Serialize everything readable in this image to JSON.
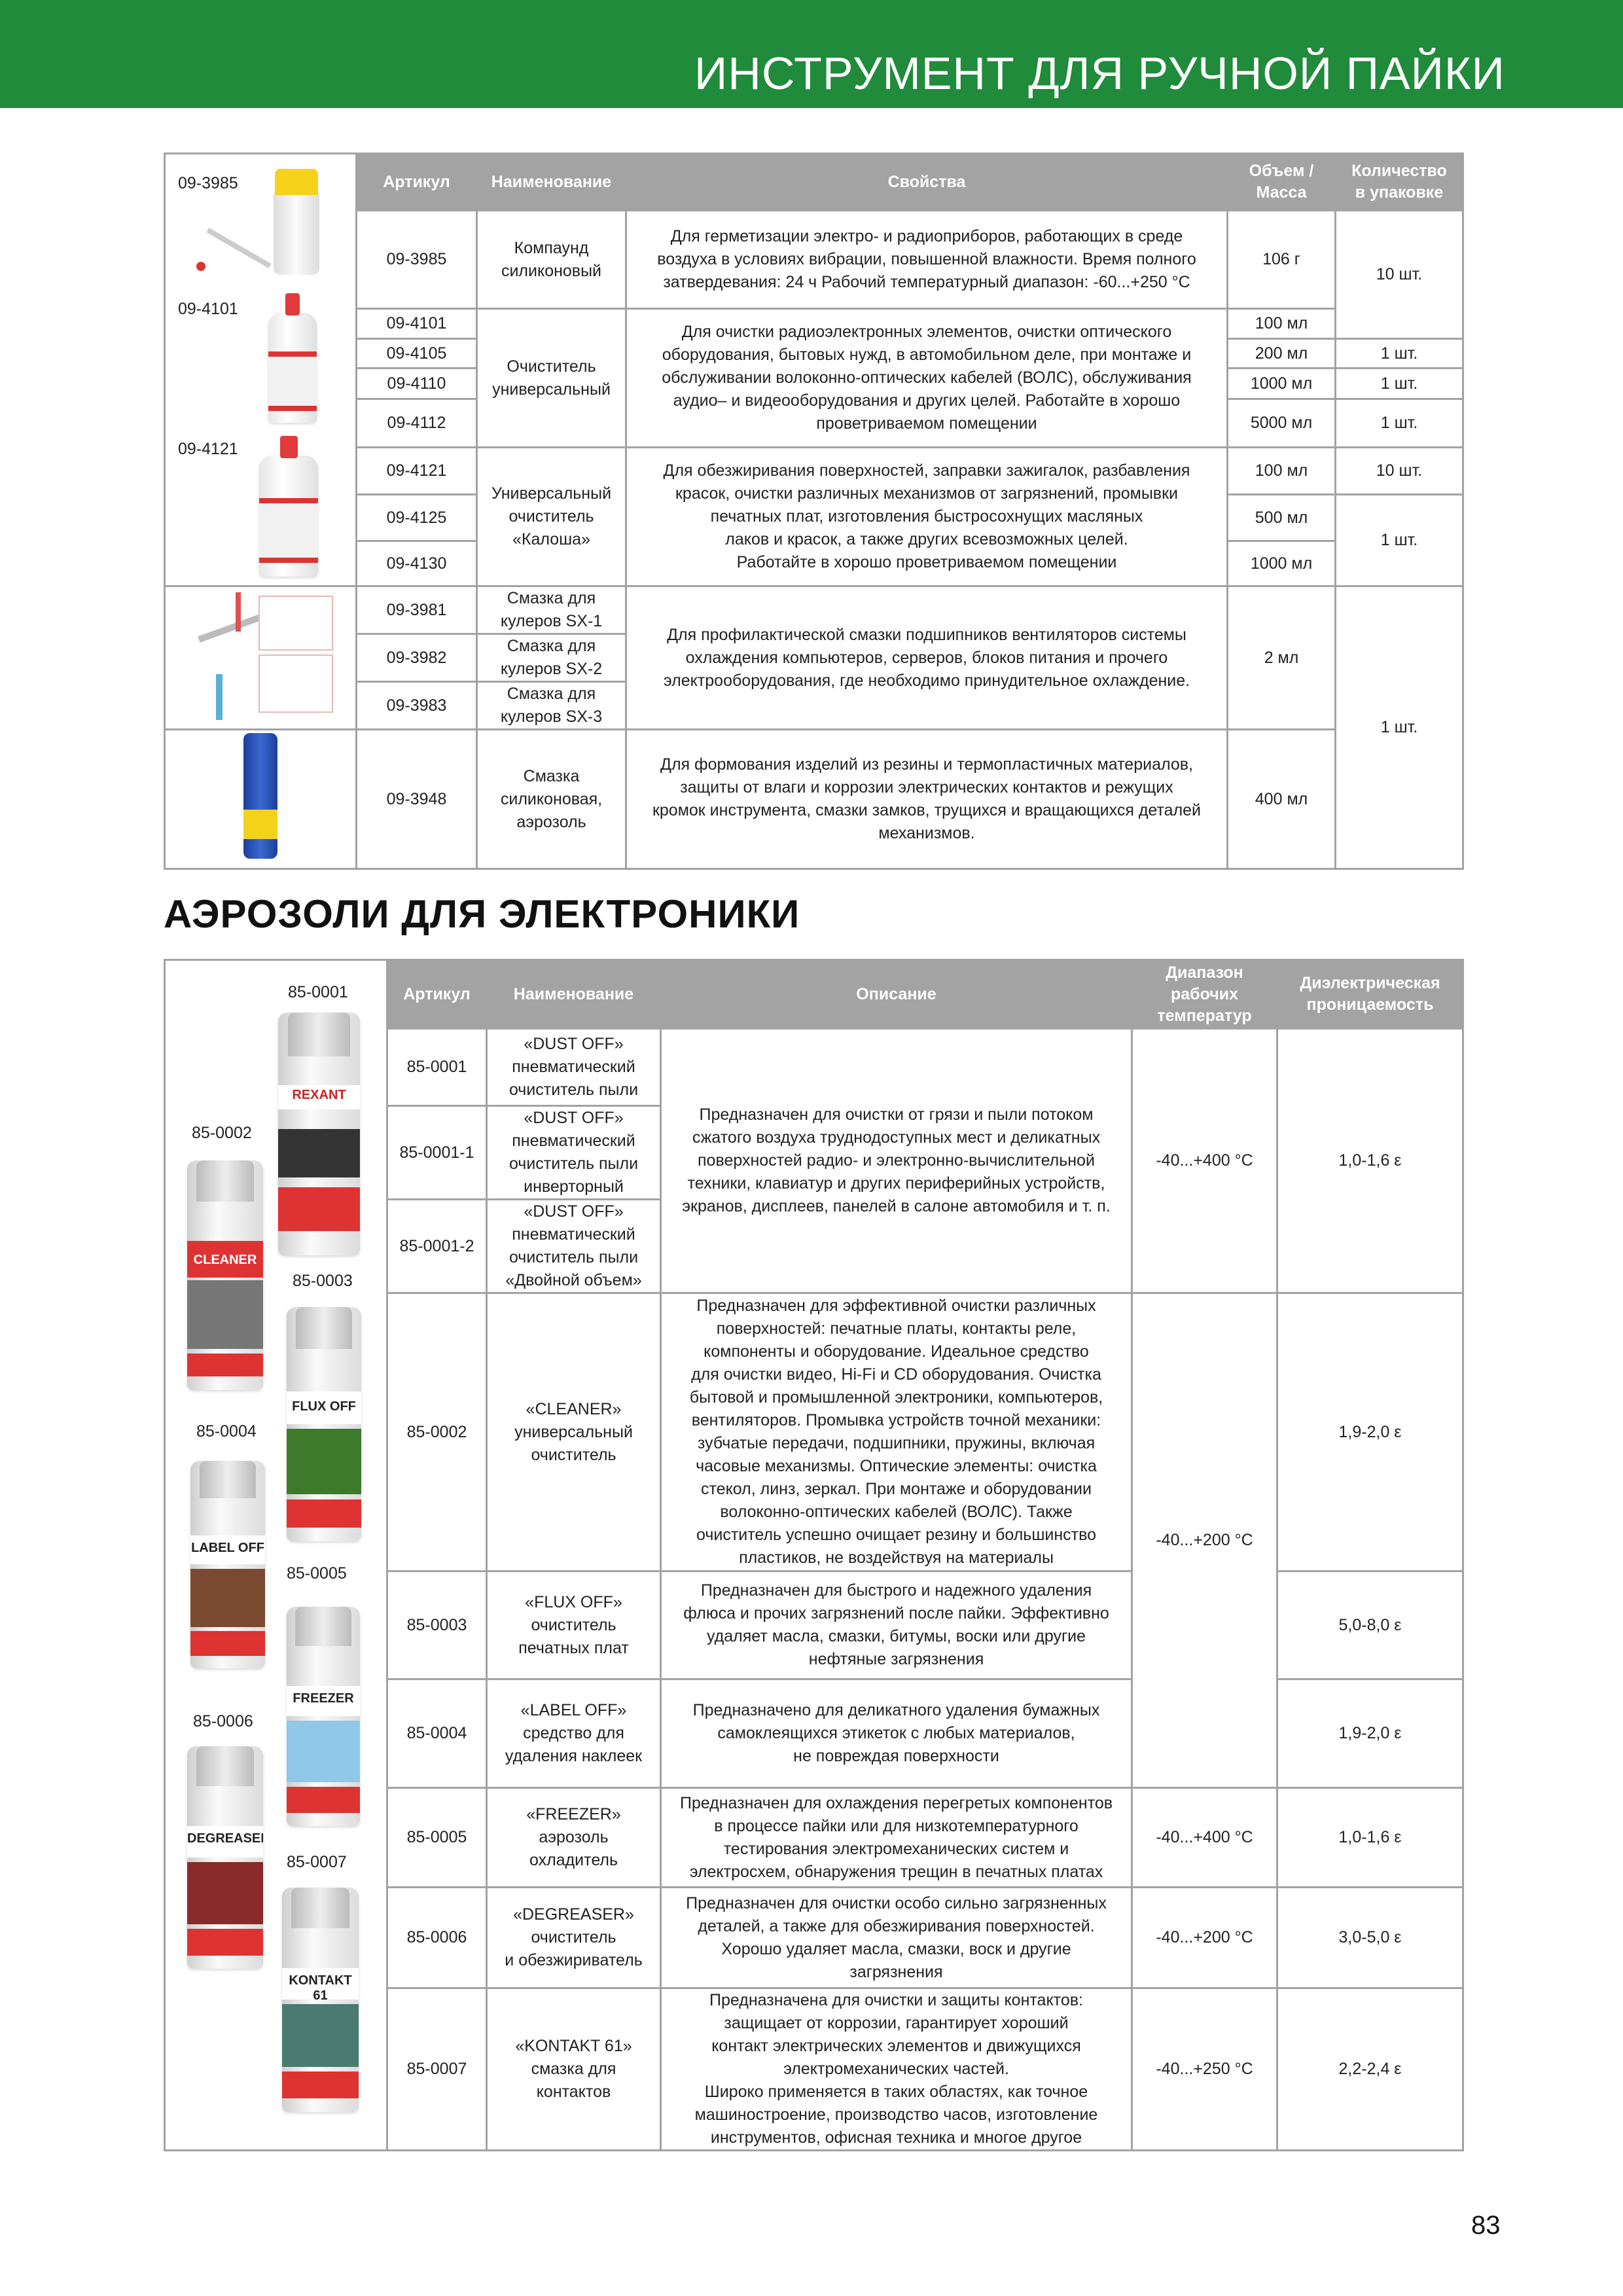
{
  "header": {
    "title": "ИНСТРУМЕНТ ДЛЯ РУЧНОЙ ПАЙКИ",
    "color": "#1f8b3b"
  },
  "table1": {
    "headers": [
      "Артикул",
      "Наименование",
      "Свойства",
      "Объем /\nМасса",
      "Количество\nв упаковке"
    ],
    "image_labels": [
      "09-3985",
      "09-4101",
      "09-4121"
    ],
    "articles": [
      "09-3985",
      "09-4101",
      "09-4105",
      "09-4110",
      "09-4112",
      "09-4121",
      "09-4125",
      "09-4130",
      "09-3981",
      "09-3982",
      "09-3983",
      "09-3948"
    ],
    "names": [
      "Компаунд\nсиликоновый",
      "Очиститель\nуниверсальный",
      "Универсальный\nочиститель\n«Калоша»",
      "Смазка для\nкулеров  SX-1",
      "Смазка для\nкулеров  SX-2",
      "Смазка для\nкулеров  SX-3",
      "Смазка\nсиликоновая,\nаэрозоль"
    ],
    "properties": [
      "Для герметизации электро- и радиоприборов, работающих в среде\nвоздуха в условиях вибрации, повышенной влажности. Время полного\nзатвердевания: 24 ч Рабочий температурный диапазон: -60...+250 °С",
      "Для очистки радиоэлектронных элементов, очистки оптического\nоборудования, бытовых нужд, в автомобильном деле, при монтаже и\nобслуживании волоконно-оптических кабелей (ВОЛС), обслуживания\nаудио– и видеооборудования и других целей. Работайте в хорошо\nпроветриваемом помещении",
      "Для обезжиривания поверхностей, заправки зажигалок,  разбавления\nкрасок, очистки различных механизмов от загрязнений, промывки\nпечатных плат, изготовления быстросохнущих масляных\nлаков и красок, а также других всевозможных целей.\nРаботайте в хорошо проветриваемом помещении",
      "Для профилактической смазки подшипников вентиляторов системы\nохлаждения компьютеров, серверов, блоков питания и прочего\nэлектрооборудования, где необходимо принудительное охлаждение.",
      "Для формования изделий из резины и термопластичных материалов,\nзащиты от влаги и коррозии электрических контактов и режущих\nкромок инструмента, смазки замков, трущихся и вращающихся деталей\nмеханизмов."
    ],
    "volumes": [
      "106 г",
      "100 мл",
      "200 мл",
      "1000 мл",
      "5000 мл",
      "100 мл",
      "500 мл",
      "1000 мл",
      "2 мл",
      "400 мл"
    ],
    "quantities": [
      "10 шт.",
      "1 шт.",
      "1 шт.",
      "1 шт.",
      "10 шт.",
      "1 шт.",
      "1 шт."
    ]
  },
  "section2": {
    "title": "АЭРОЗОЛИ ДЛЯ ЭЛЕКТРОНИКИ"
  },
  "table2": {
    "headers": [
      "Артикул",
      "Наименование",
      "Описание",
      "Диапазон\nрабочих\nтемператур",
      "Диэлектрическая\nпроницаемость"
    ],
    "image_labels": [
      "85-0001",
      "85-0002",
      "85-0003",
      "85-0004",
      "85-0005",
      "85-0006",
      "85-0007"
    ],
    "can_labels": [
      "REXANT",
      "CLEANER",
      "FLUX OFF",
      "LABEL OFF",
      "FREEZER",
      "DEGREASER",
      "KONTAKT 61"
    ],
    "articles": [
      "85-0001",
      "85-0001-1",
      "85-0001-2",
      "85-0002",
      "85-0003",
      "85-0004",
      "85-0005",
      "85-0006",
      "85-0007"
    ],
    "names": [
      "«DUST OFF»\nпневматический\nочиститель пыли",
      "«DUST OFF»\nпневматический\nочиститель пыли\nинверторный",
      "«DUST OFF»\nпневматический\nочиститель пыли\n«Двойной объем»",
      "«CLEANER»\nуниверсальный\nочиститель",
      "«FLUX OFF»\nочиститель\nпечатных плат",
      "«LABEL OFF»\nсредство для\nудаления наклеек",
      "«FREEZER»\nаэрозоль\nохладитель",
      "«DEGREASER»\nочиститель\nи обезжириватель",
      "«KONTAKT 61»\nсмазка для\nконтактов"
    ],
    "descriptions": [
      "Предназначен для очистки от грязи и пыли потоком\nсжатого воздуха труднодоступных мест и деликатных\nповерхностей радио- и электронно-вычислительной\nтехники, клавиатур и других периферийных устройств,\nэкранов, дисплеев, панелей в салоне автомобиля и т. п.",
      "Предназначен для эффективной очистки различных\nповерхностей: печатные платы, контакты реле,\nкомпоненты и оборудование. Идеальное средство\nдля очистки видео, Hi-Fi и CD оборудования. Очистка\nбытовой и промышленной электроники, компьютеров,\nвентиляторов. Промывка устройств точной механики:\nзубчатые передачи, подшипники, пружины, включая\nчасовые механизмы. Оптические элементы: очистка\nстекол, линз, зеркал. При монтаже и оборудовании\nволоконно-оптических кабелей (ВОЛС). Также\nочиститель успешно очищает резину и большинство\nпластиков, не воздействуя на материалы",
      "Предназначен для быстрого и надежного удаления\nфлюса и прочих загрязнений после пайки. Эффективно\nудаляет масла, смазки, битумы, воски или другие\nнефтяные загрязнения",
      "Предназначено для деликатного удаления бумажных\nсамоклеящихся этикеток с любых материалов,\nне повреждая поверхности",
      "Предназначен для охлаждения перегретых компонентов\nв процессе пайки или для низкотемпературного\nтестирования электромеханических систем и\nэлектросхем, обнаружения трещин в печатных платах",
      "Предназначен для очистки особо сильно загрязненных\nдеталей, а также для обезжиривания поверхностей.\nХорошо удаляет масла, смазки, воск и другие\nзагрязнения",
      "Предназначена для очистки и защиты контактов:\nзащищает от коррозии, гарантирует хороший\nконтакт электрических элементов и движущихся\nэлектромеханических частей.\nШироко применяется в таких областях, как точное\nмашиностроение, производство часов, изготовление\nинструментов, офисная техника и многое другое"
    ],
    "temperatures": [
      "-40...+400 °С",
      "-40...+200 °С",
      "-40...+400 °С",
      "-40...+200 °С",
      "-40...+250 °С"
    ],
    "dielectric": [
      "1,0-1,6 ε",
      "1,9-2,0 ε",
      "5,0-8,0 ε",
      "1,9-2,0 ε",
      "1,0-1,6 ε",
      "3,0-5,0 ε",
      "2,2-2,4 ε"
    ]
  },
  "page_number": "83"
}
